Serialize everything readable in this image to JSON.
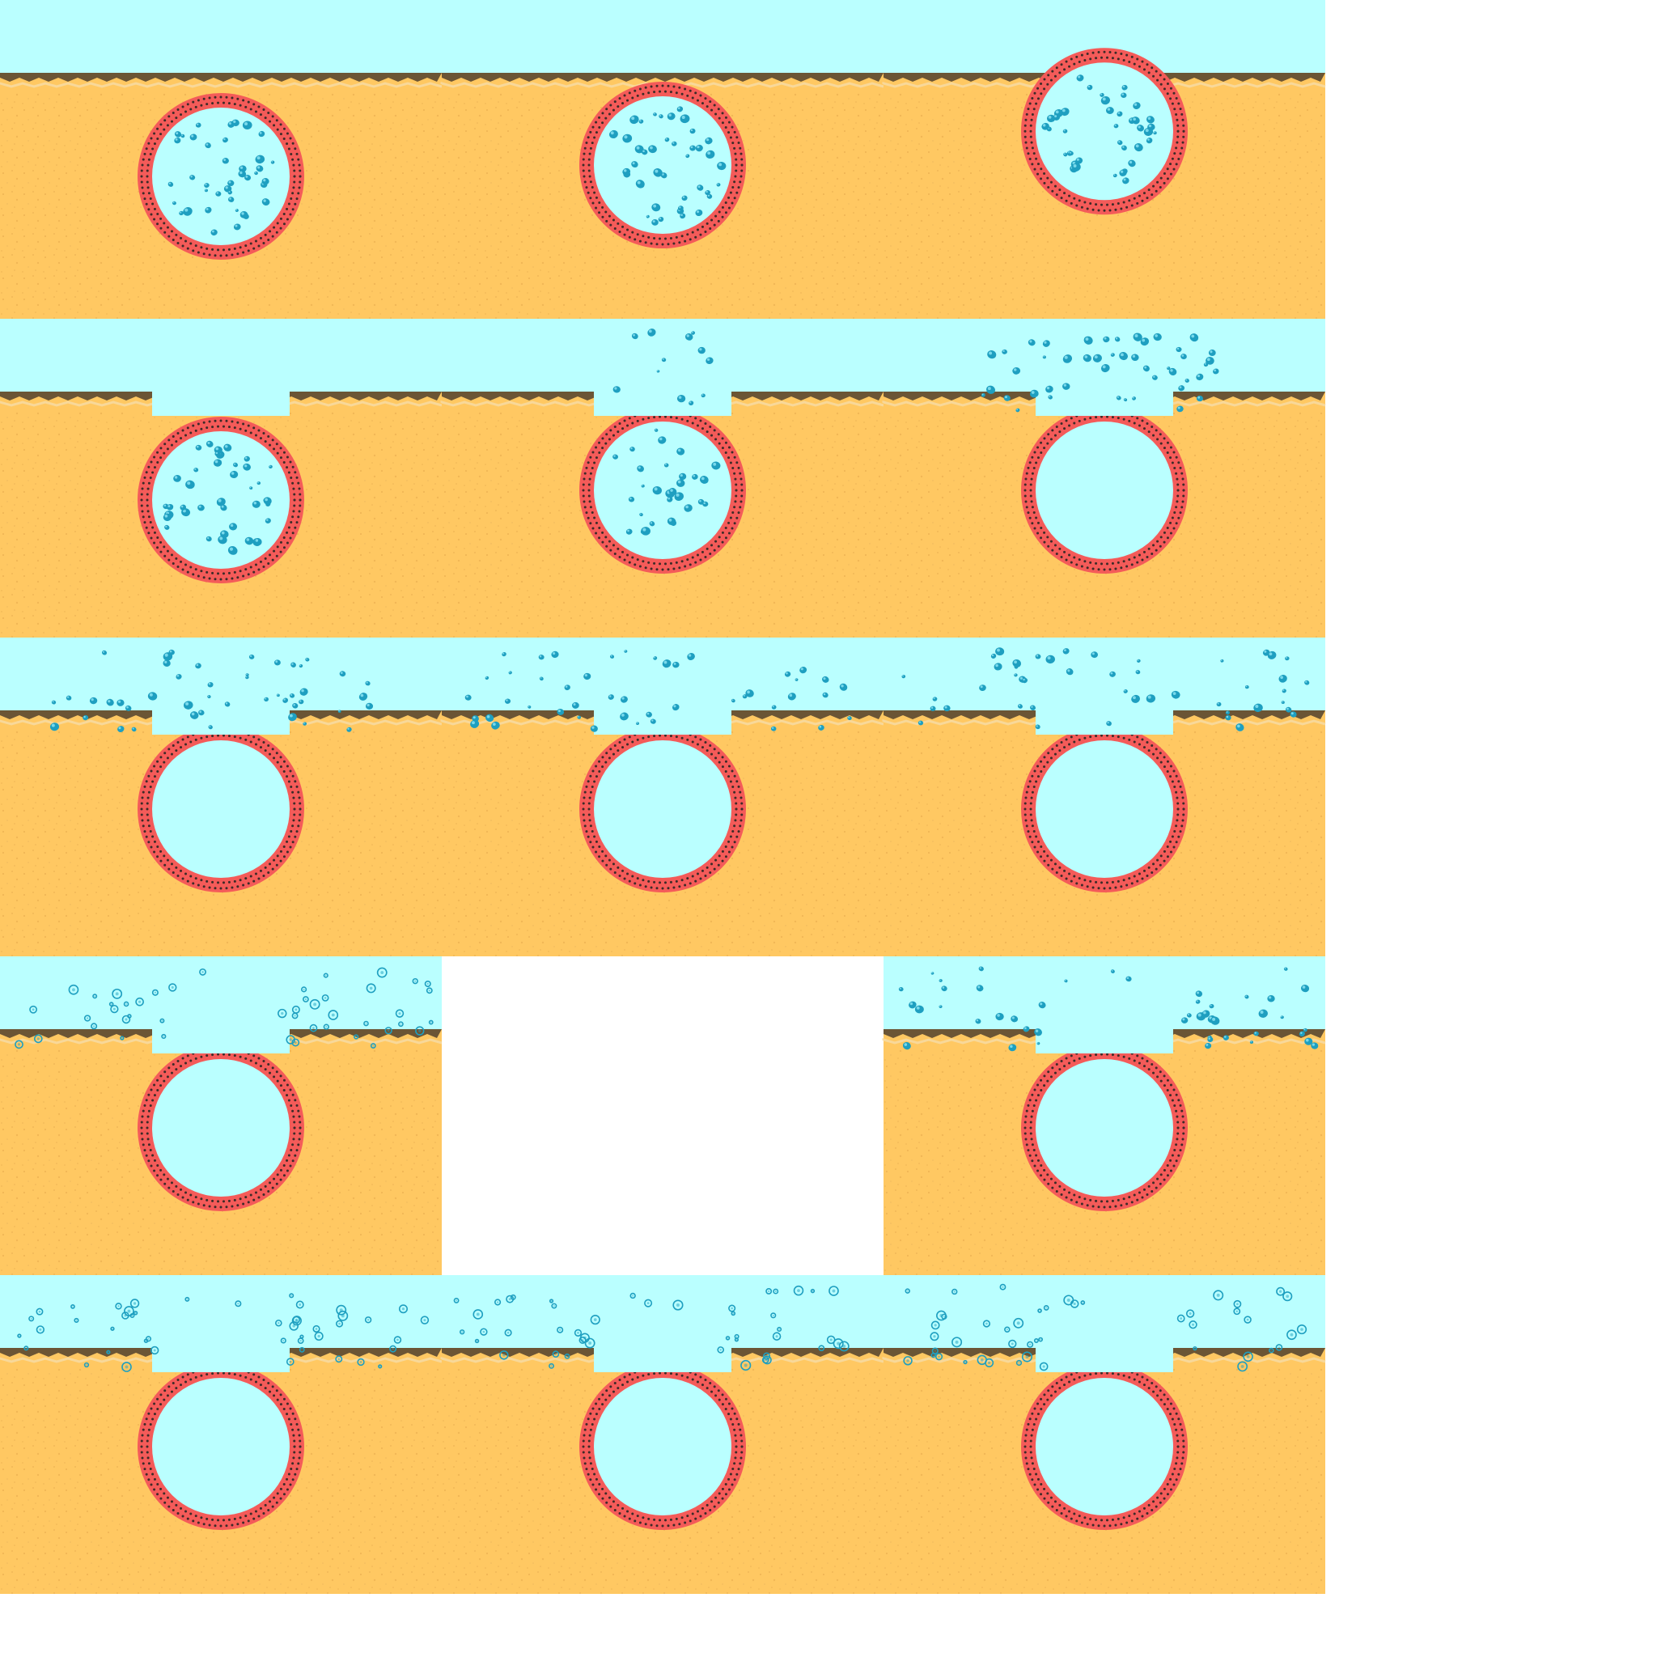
{
  "sprite_sheet": {
    "columns": 3,
    "rows": 5,
    "frame_count": 14,
    "empty_slot": {
      "row": 4,
      "column": 2
    },
    "colors": {
      "background": "#ffffff",
      "sand": "#ffc862",
      "sand_speckle": "#e8ad4e",
      "water": "#baffff",
      "membrane": "#f45b59",
      "membrane_dots": "#3d2b28",
      "droplet": "#1e9fc0",
      "droplet_dark": "#0d7fa3",
      "soil_dark": "#6b5535",
      "soil_light": "#f7d9a0"
    },
    "icons": [
      "vesicle-circle",
      "water-droplet-cluster"
    ],
    "frames": [
      {
        "stage": "vesicle-in-cytoplasm",
        "vesicle_lift": 0.0,
        "fusion": 0.0,
        "droplets_inside": 1.0,
        "droplets_released": 0.0,
        "droplet_shape": "solid"
      },
      {
        "stage": "vesicle-in-cytoplasm",
        "vesicle_lift": 0.09,
        "fusion": 0.0,
        "droplets_inside": 1.0,
        "droplets_released": 0.0,
        "droplet_shape": "solid"
      },
      {
        "stage": "vesicle-in-cytoplasm",
        "vesicle_lift": 0.36,
        "fusion": 0.0,
        "droplets_inside": 1.0,
        "droplets_released": 0.0,
        "droplet_shape": "solid"
      },
      {
        "stage": "docking",
        "vesicle_lift": 0.0,
        "fusion": 0.05,
        "droplets_inside": 1.0,
        "droplets_released": 0.0,
        "droplet_shape": "solid"
      },
      {
        "stage": "fusion-pore",
        "vesicle_lift": 0.0,
        "fusion": 0.7,
        "droplets_inside": 0.75,
        "droplets_released": 0.25,
        "droplet_shape": "solid"
      },
      {
        "stage": "fusion-pore",
        "vesicle_lift": 0.0,
        "fusion": 1.0,
        "droplets_inside": 0.0,
        "droplets_released": 1.0,
        "droplet_shape": "solid"
      },
      {
        "stage": "release",
        "vesicle_lift": 0.0,
        "fusion": 1.0,
        "droplets_inside": 0.0,
        "droplets_released": 1.0,
        "droplet_shape": "solid"
      },
      {
        "stage": "release",
        "vesicle_lift": 0.0,
        "fusion": 1.0,
        "droplets_inside": 0.0,
        "droplets_released": 1.0,
        "droplet_shape": "solid"
      },
      {
        "stage": "release",
        "vesicle_lift": 0.0,
        "fusion": 1.0,
        "droplets_inside": 0.0,
        "droplets_released": 1.0,
        "droplet_shape": "solid"
      },
      {
        "stage": "diffusion",
        "vesicle_lift": 0.0,
        "fusion": 1.0,
        "droplets_inside": 0.0,
        "droplets_released": 1.0,
        "droplet_shape": "ring"
      },
      {
        "stage": "diffusion",
        "vesicle_lift": 0.0,
        "fusion": 1.0,
        "droplets_inside": 0.0,
        "droplets_released": 1.0,
        "droplet_shape": "solid"
      },
      {
        "stage": "diffusion",
        "vesicle_lift": 0.0,
        "fusion": 1.0,
        "droplets_inside": 0.0,
        "droplets_released": 1.0,
        "droplet_shape": "ring"
      },
      {
        "stage": "diffusion",
        "vesicle_lift": 0.0,
        "fusion": 1.0,
        "droplets_inside": 0.0,
        "droplets_released": 1.0,
        "droplet_shape": "ring"
      },
      {
        "stage": "diffusion",
        "vesicle_lift": 0.0,
        "fusion": 1.0,
        "droplets_inside": 0.0,
        "droplets_released": 1.0,
        "droplet_shape": "ring"
      }
    ]
  }
}
